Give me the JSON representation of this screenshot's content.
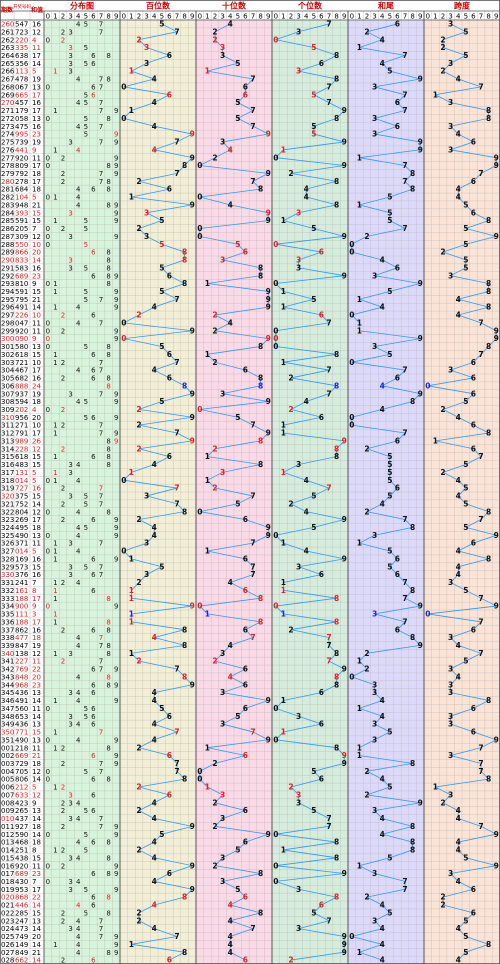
{
  "headers": {
    "period": "期数",
    "draw": "开奖号码",
    "sum": "和值",
    "distribution": "分布图",
    "hundreds": "百位数",
    "tens": "十位数",
    "units": "个位数",
    "sum_tail": "和尾",
    "span": "跨度"
  },
  "digits": [
    "0",
    "1",
    "2",
    "3",
    "4",
    "5",
    "6",
    "7",
    "8",
    "9"
  ],
  "colors": {
    "header_text": "#cc0000",
    "grid": "#b8b8b8",
    "line": "#3399ee",
    "digit_black": "#111111",
    "digit_red": "#dd2222",
    "digit_blue": "#2222dd",
    "dist_bg": "#d9f4dc",
    "hundreds_bg": "#f2efd6",
    "tens_bg": "#fbd9e6",
    "units_bg": "#d6ecdc",
    "tail_bg": "#ddd9fb",
    "span_bg": "#fbe3d6"
  },
  "chart_data": {
    "type": "table",
    "rows": [
      {
        "period": "260",
        "draw": "547",
        "sum": "16"
      },
      {
        "period": "261",
        "draw": "723",
        "sum": "12"
      },
      {
        "period": "262",
        "draw": "220",
        "sum": "4"
      },
      {
        "period": "263",
        "draw": "335",
        "sum": "11"
      },
      {
        "period": "264",
        "draw": "638",
        "sum": "17"
      },
      {
        "period": "265",
        "draw": "356",
        "sum": "14"
      },
      {
        "period": "266",
        "draw": "113",
        "sum": "5"
      },
      {
        "period": "267",
        "draw": "478",
        "sum": "19"
      },
      {
        "period": "268",
        "draw": "067",
        "sum": "13"
      },
      {
        "period": "269",
        "draw": "665",
        "sum": "17"
      },
      {
        "period": "270",
        "draw": "457",
        "sum": "16"
      },
      {
        "period": "271",
        "draw": "179",
        "sum": "17"
      },
      {
        "period": "272",
        "draw": "058",
        "sum": "13"
      },
      {
        "period": "273",
        "draw": "475",
        "sum": "16"
      },
      {
        "period": "274",
        "draw": "995",
        "sum": "23"
      },
      {
        "period": "275",
        "draw": "739",
        "sum": "19"
      },
      {
        "period": "276",
        "draw": "441",
        "sum": "9"
      },
      {
        "period": "277",
        "draw": "920",
        "sum": "11"
      },
      {
        "period": "278",
        "draw": "809",
        "sum": "17"
      },
      {
        "period": "279",
        "draw": "792",
        "sum": "18"
      },
      {
        "period": "280",
        "draw": "278",
        "sum": "17"
      },
      {
        "period": "281",
        "draw": "684",
        "sum": "18"
      },
      {
        "period": "282",
        "draw": "104",
        "sum": "5"
      },
      {
        "period": "283",
        "draw": "948",
        "sum": "21"
      },
      {
        "period": "284",
        "draw": "393",
        "sum": "15"
      },
      {
        "period": "285",
        "draw": "591",
        "sum": "15"
      },
      {
        "period": "286",
        "draw": "205",
        "sum": "7"
      },
      {
        "period": "287",
        "draw": "309",
        "sum": "12"
      },
      {
        "period": "288",
        "draw": "550",
        "sum": "10"
      },
      {
        "period": "289",
        "draw": "866",
        "sum": "20"
      },
      {
        "period": "290",
        "draw": "833",
        "sum": "14"
      },
      {
        "period": "291",
        "draw": "583",
        "sum": "16"
      },
      {
        "period": "292",
        "draw": "689",
        "sum": "23"
      },
      {
        "period": "293",
        "draw": "810",
        "sum": "9"
      },
      {
        "period": "294",
        "draw": "591",
        "sum": "15"
      },
      {
        "period": "295",
        "draw": "795",
        "sum": "21"
      },
      {
        "period": "296",
        "draw": "491",
        "sum": "14"
      },
      {
        "period": "297",
        "draw": "226",
        "sum": "10"
      },
      {
        "period": "298",
        "draw": "047",
        "sum": "11"
      },
      {
        "period": "299",
        "draw": "920",
        "sum": "11"
      },
      {
        "period": "300",
        "draw": "090",
        "sum": "9"
      },
      {
        "period": "301",
        "draw": "580",
        "sum": "13"
      },
      {
        "period": "302",
        "draw": "618",
        "sum": "15"
      },
      {
        "period": "303",
        "draw": "721",
        "sum": "10"
      },
      {
        "period": "304",
        "draw": "467",
        "sum": "17"
      },
      {
        "period": "305",
        "draw": "682",
        "sum": "16"
      },
      {
        "period": "306",
        "draw": "888",
        "sum": "24"
      },
      {
        "period": "307",
        "draw": "937",
        "sum": "19"
      },
      {
        "period": "308",
        "draw": "594",
        "sum": "18"
      },
      {
        "period": "309",
        "draw": "202",
        "sum": "4"
      },
      {
        "period": "310",
        "draw": "956",
        "sum": "20"
      },
      {
        "period": "311",
        "draw": "271",
        "sum": "10"
      },
      {
        "period": "312",
        "draw": "791",
        "sum": "17"
      },
      {
        "period": "313",
        "draw": "989",
        "sum": "26"
      },
      {
        "period": "314",
        "draw": "228",
        "sum": "12"
      },
      {
        "period": "315",
        "draw": "618",
        "sum": "15"
      },
      {
        "period": "316",
        "draw": "483",
        "sum": "15"
      },
      {
        "period": "317",
        "draw": "131",
        "sum": "5"
      },
      {
        "period": "318",
        "draw": "014",
        "sum": "5"
      },
      {
        "period": "319",
        "draw": "727",
        "sum": "16"
      },
      {
        "period": "320",
        "draw": "375",
        "sum": "15"
      },
      {
        "period": "321",
        "draw": "752",
        "sum": "14"
      },
      {
        "period": "322",
        "draw": "804",
        "sum": "12"
      },
      {
        "period": "323",
        "draw": "269",
        "sum": "17"
      },
      {
        "period": "324",
        "draw": "495",
        "sum": "18"
      },
      {
        "period": "325",
        "draw": "490",
        "sum": "13"
      },
      {
        "period": "326",
        "draw": "371",
        "sum": "11"
      },
      {
        "period": "327",
        "draw": "014",
        "sum": "5"
      },
      {
        "period": "328",
        "draw": "169",
        "sum": "16"
      },
      {
        "period": "329",
        "draw": "573",
        "sum": "15"
      },
      {
        "period": "330",
        "draw": "376",
        "sum": "16"
      },
      {
        "period": "331",
        "draw": "241",
        "sum": "7"
      },
      {
        "period": "332",
        "draw": "161",
        "sum": "8"
      },
      {
        "period": "333",
        "draw": "188",
        "sum": "17"
      },
      {
        "period": "334",
        "draw": "900",
        "sum": "9"
      },
      {
        "period": "335",
        "draw": "111",
        "sum": "3"
      },
      {
        "period": "336",
        "draw": "188",
        "sum": "17"
      },
      {
        "period": "337",
        "draw": "862",
        "sum": "16"
      },
      {
        "period": "338",
        "draw": "477",
        "sum": "18"
      },
      {
        "period": "339",
        "draw": "847",
        "sum": "19"
      },
      {
        "period": "340",
        "draw": "138",
        "sum": "12"
      },
      {
        "period": "341",
        "draw": "227",
        "sum": "11"
      },
      {
        "period": "342",
        "draw": "769",
        "sum": "22"
      },
      {
        "period": "343",
        "draw": "848",
        "sum": "20"
      },
      {
        "period": "344",
        "draw": "968",
        "sum": "23"
      },
      {
        "period": "345",
        "draw": "436",
        "sum": "13"
      },
      {
        "period": "346",
        "draw": "491",
        "sum": "14"
      },
      {
        "period": "347",
        "draw": "560",
        "sum": "11"
      },
      {
        "period": "348",
        "draw": "653",
        "sum": "14"
      },
      {
        "period": "349",
        "draw": "436",
        "sum": "13"
      },
      {
        "period": "350",
        "draw": "771",
        "sum": "15"
      },
      {
        "period": "351",
        "draw": "490",
        "sum": "13"
      },
      {
        "period": "001",
        "draw": "218",
        "sum": "11"
      },
      {
        "period": "002",
        "draw": "669",
        "sum": "21"
      },
      {
        "period": "003",
        "draw": "729",
        "sum": "18"
      },
      {
        "period": "004",
        "draw": "705",
        "sum": "12"
      },
      {
        "period": "005",
        "draw": "806",
        "sum": "14"
      },
      {
        "period": "006",
        "draw": "212",
        "sum": "5"
      },
      {
        "period": "007",
        "draw": "633",
        "sum": "12"
      },
      {
        "period": "008",
        "draw": "423",
        "sum": "9"
      },
      {
        "period": "009",
        "draw": "265",
        "sum": "13"
      },
      {
        "period": "010",
        "draw": "437",
        "sum": "14"
      },
      {
        "period": "011",
        "draw": "927",
        "sum": "18"
      },
      {
        "period": "012",
        "draw": "590",
        "sum": "14"
      },
      {
        "period": "013",
        "draw": "468",
        "sum": "18"
      },
      {
        "period": "014",
        "draw": "251",
        "sum": "8"
      },
      {
        "period": "015",
        "draw": "438",
        "sum": "15"
      },
      {
        "period": "016",
        "draw": "920",
        "sum": "11"
      },
      {
        "period": "017",
        "draw": "689",
        "sum": "23"
      },
      {
        "period": "018",
        "draw": "430",
        "sum": "7"
      },
      {
        "period": "019",
        "draw": "953",
        "sum": "17"
      },
      {
        "period": "020",
        "draw": "868",
        "sum": "22"
      },
      {
        "period": "021",
        "draw": "446",
        "sum": "14"
      },
      {
        "period": "022",
        "draw": "285",
        "sum": "15"
      },
      {
        "period": "023",
        "draw": "247",
        "sum": "13"
      },
      {
        "period": "024",
        "draw": "473",
        "sum": "14"
      },
      {
        "period": "025",
        "draw": "749",
        "sum": "20"
      },
      {
        "period": "026",
        "draw": "149",
        "sum": "14"
      },
      {
        "period": "027",
        "draw": "849",
        "sum": "21"
      },
      {
        "period": "028",
        "draw": "662",
        "sum": "14"
      }
    ]
  }
}
